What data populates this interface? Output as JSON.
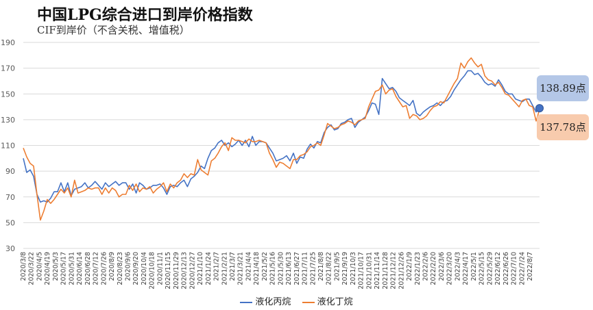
{
  "chart_data": {
    "type": "line",
    "title": "中国LPG综合进口到岸价格指数",
    "subtitle": "CIF到岸价（不含关税、增值税）",
    "xlabel": "",
    "ylabel": "",
    "ylim": [
      30,
      190
    ],
    "yticks": [
      30,
      50,
      70,
      90,
      110,
      130,
      150,
      170,
      190
    ],
    "grid": "horizontal",
    "legend_position": "bottom",
    "xtick_labels": [
      "2020/3/8",
      "2020/3/22",
      "2020/4/5",
      "2020/4/19",
      "2020/5/3",
      "2020/5/17",
      "2020/5/31",
      "2020/6/14",
      "2020/6/28",
      "2020/7/12",
      "2020/7/26",
      "2020/8/9",
      "2020/8/23",
      "2020/9/6",
      "2020/9/20",
      "2020/10/4",
      "2020/10/18",
      "2020/11/1",
      "2020/11/15",
      "2020/11/29",
      "2020/12/13",
      "2020/12/27",
      "2021/1/10",
      "2021/1/24",
      "2021/2/7",
      "2021/2/21",
      "2021/3/7",
      "2021/3/21",
      "2021/4/4",
      "2021/4/18",
      "2021/5/2",
      "2021/5/16",
      "2021/5/30",
      "2021/6/13",
      "2021/6/27",
      "2021/7/11",
      "2021/7/25",
      "2021/8/8",
      "2021/8/22",
      "2021/9/5",
      "2021/9/19",
      "2021/10/3",
      "2021/10/17",
      "2021/10/31",
      "2021/11/14",
      "2021/11/28",
      "2021/12/12",
      "2021/12/26",
      "2022/1/9",
      "2022/1/23",
      "2022/2/6",
      "2022/2/20",
      "2022/3/6",
      "2022/3/20",
      "2022/4/3",
      "2022/4/17",
      "2022/5/1",
      "2022/5/15",
      "2022/5/29",
      "2022/6/12",
      "2022/6/26",
      "2022/7/10",
      "2022/7/24",
      "2022/8/7"
    ],
    "series": [
      {
        "name": "液化丙烷",
        "color": "#4472c4",
        "values": [
          100,
          89,
          91,
          86,
          72,
          66,
          67,
          66,
          69,
          74,
          74,
          81,
          74,
          81,
          71,
          76,
          77,
          78,
          81,
          77,
          79,
          82,
          79,
          76,
          81,
          78,
          80,
          82,
          79,
          81,
          81,
          76,
          80,
          73,
          81,
          79,
          76,
          77,
          79,
          79,
          80,
          77,
          72,
          78,
          79,
          78,
          81,
          83,
          78,
          84,
          86,
          89,
          94,
          92,
          100,
          106,
          108,
          112,
          114,
          110,
          112,
          109,
          111,
          114,
          110,
          114,
          109,
          117,
          110,
          113,
          113,
          112,
          108,
          104,
          98,
          99,
          100,
          102,
          98,
          104,
          96,
          101,
          100,
          107,
          111,
          108,
          113,
          112,
          120,
          124,
          126,
          122,
          123,
          127,
          128,
          130,
          131,
          124,
          128,
          130,
          132,
          137,
          143,
          142,
          134,
          162,
          158,
          154,
          155,
          152,
          147,
          145,
          143,
          141,
          145,
          135,
          133,
          136,
          138,
          140,
          141,
          143,
          141,
          144,
          145,
          148,
          153,
          157,
          161,
          164,
          168,
          168,
          165,
          166,
          163,
          159,
          157,
          158,
          156,
          161,
          157,
          152,
          150,
          150,
          146,
          145,
          144,
          146,
          146,
          141,
          136,
          138.89
        ]
      },
      {
        "name": "液化丁烷",
        "color": "#ed7d31",
        "values": [
          108,
          101,
          96,
          94,
          72,
          52,
          59,
          68,
          65,
          68,
          72,
          76,
          73,
          77,
          70,
          83,
          73,
          74,
          75,
          77,
          76,
          77,
          77,
          72,
          77,
          73,
          77,
          75,
          70,
          72,
          72,
          79,
          75,
          80,
          74,
          77,
          76,
          78,
          73,
          76,
          78,
          81,
          74,
          80,
          77,
          81,
          83,
          88,
          85,
          88,
          87,
          99,
          91,
          89,
          87,
          98,
          100,
          104,
          109,
          112,
          106,
          116,
          114,
          114,
          113,
          112,
          115,
          113,
          113,
          114,
          113,
          112,
          104,
          99,
          93,
          97,
          96,
          94,
          92,
          99,
          99,
          102,
          103,
          105,
          109,
          110,
          112,
          110,
          118,
          127,
          125,
          123,
          124,
          126,
          127,
          129,
          128,
          126,
          129,
          130,
          131,
          140,
          146,
          152,
          153,
          157,
          150,
          153,
          154,
          148,
          144,
          140,
          141,
          131,
          134,
          133,
          130,
          131,
          133,
          137,
          140,
          141,
          144,
          143,
          148,
          153,
          158,
          162,
          174,
          170,
          175,
          178,
          174,
          171,
          173,
          164,
          161,
          160,
          157,
          159,
          155,
          150,
          149,
          146,
          143,
          140,
          145,
          146,
          141,
          140,
          129,
          137.78
        ]
      }
    ],
    "end_labels": {
      "propane": "138.89点",
      "butane": "137.78点"
    }
  }
}
